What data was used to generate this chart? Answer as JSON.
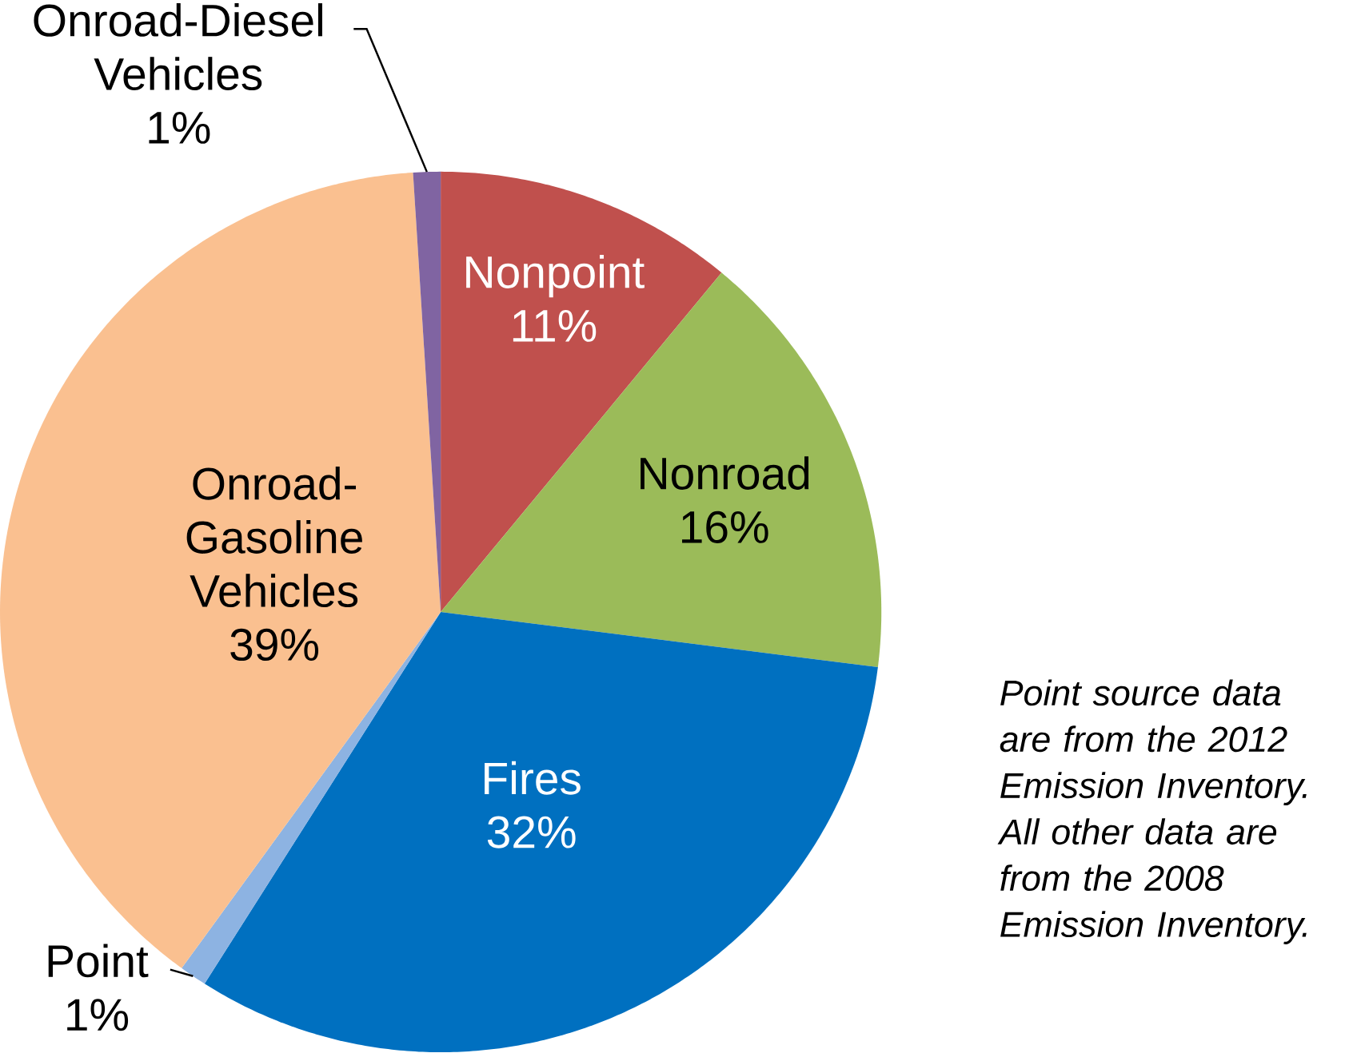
{
  "chart_data": {
    "type": "pie",
    "categories": [
      "Nonpoint",
      "Nonroad",
      "Fires",
      "Point",
      "Onroad-Gasoline Vehicles",
      "Onroad-Diesel Vehicles"
    ],
    "values": [
      11,
      16,
      32,
      1,
      39,
      1
    ],
    "value_labels": [
      "11%",
      "16%",
      "32%",
      "1%",
      "39%",
      "1%"
    ],
    "colors": [
      "#c0504d",
      "#9bbb59",
      "#0070c0",
      "#8db3e2",
      "#fac090",
      "#8064a2"
    ],
    "annotations": [
      "Point source data are from the 2012 Emission Inventory. All other data are from the 2008 Emission Inventory."
    ]
  }
}
